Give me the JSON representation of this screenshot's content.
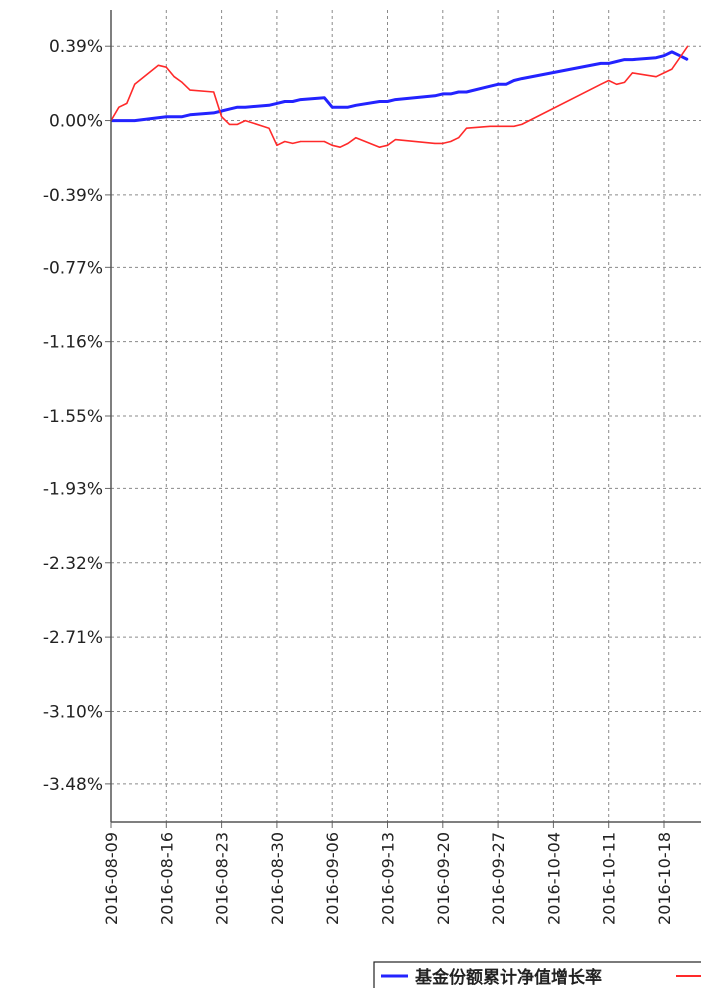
{
  "chart_data": {
    "type": "line",
    "title": "",
    "xlabel": "",
    "ylabel": "",
    "y_ticks": [
      "0.39%",
      "0.00%",
      "-0.39%",
      "-0.77%",
      "-1.16%",
      "-1.55%",
      "-1.93%",
      "-2.32%",
      "-2.71%",
      "-3.10%",
      "-3.48%"
    ],
    "x_ticks": [
      "2016-08-09",
      "2016-08-16",
      "2016-08-23",
      "2016-08-30",
      "2016-09-06",
      "2016-09-13",
      "2016-09-20",
      "2016-09-27",
      "2016-10-04",
      "2016-10-11",
      "2016-10-18"
    ],
    "ylim": [
      -3.68,
      0.58
    ],
    "xlim": [
      "2016-08-09",
      "2016-10-23"
    ],
    "grid": true,
    "legend_position": "bottom",
    "series": [
      {
        "name": "基金份额累计净值增长率",
        "color": "#2323ff",
        "points": [
          [
            "2016-08-09",
            0.0
          ],
          [
            "2016-08-12",
            0.0
          ],
          [
            "2016-08-16",
            0.02
          ],
          [
            "2016-08-18",
            0.02
          ],
          [
            "2016-08-19",
            0.03
          ],
          [
            "2016-08-22",
            0.04
          ],
          [
            "2016-08-23",
            0.05
          ],
          [
            "2016-08-24",
            0.06
          ],
          [
            "2016-08-25",
            0.07
          ],
          [
            "2016-08-26",
            0.07
          ],
          [
            "2016-08-29",
            0.08
          ],
          [
            "2016-08-30",
            0.09
          ],
          [
            "2016-08-31",
            0.1
          ],
          [
            "2016-09-01",
            0.1
          ],
          [
            "2016-09-02",
            0.11
          ],
          [
            "2016-09-05",
            0.12
          ],
          [
            "2016-09-06",
            0.07
          ],
          [
            "2016-09-07",
            0.07
          ],
          [
            "2016-09-08",
            0.07
          ],
          [
            "2016-09-09",
            0.08
          ],
          [
            "2016-09-12",
            0.1
          ],
          [
            "2016-09-13",
            0.1
          ],
          [
            "2016-09-14",
            0.11
          ],
          [
            "2016-09-19",
            0.13
          ],
          [
            "2016-09-20",
            0.14
          ],
          [
            "2016-09-21",
            0.14
          ],
          [
            "2016-09-22",
            0.15
          ],
          [
            "2016-09-23",
            0.15
          ],
          [
            "2016-09-26",
            0.18
          ],
          [
            "2016-09-27",
            0.19
          ],
          [
            "2016-09-28",
            0.19
          ],
          [
            "2016-09-29",
            0.21
          ],
          [
            "2016-09-30",
            0.22
          ],
          [
            "2016-10-10",
            0.3
          ],
          [
            "2016-10-11",
            0.3
          ],
          [
            "2016-10-12",
            0.31
          ],
          [
            "2016-10-13",
            0.32
          ],
          [
            "2016-10-14",
            0.32
          ],
          [
            "2016-10-17",
            0.33
          ],
          [
            "2016-10-18",
            0.34
          ],
          [
            "2016-10-19",
            0.36
          ],
          [
            "2016-10-20",
            0.34
          ],
          [
            "2016-10-21",
            0.32
          ]
        ]
      },
      {
        "name": "",
        "color": "#ff2a2a",
        "points": [
          [
            "2016-08-09",
            0.0
          ],
          [
            "2016-08-10",
            0.07
          ],
          [
            "2016-08-11",
            0.09
          ],
          [
            "2016-08-12",
            0.19
          ],
          [
            "2016-08-15",
            0.29
          ],
          [
            "2016-08-16",
            0.28
          ],
          [
            "2016-08-17",
            0.23
          ],
          [
            "2016-08-18",
            0.2
          ],
          [
            "2016-08-19",
            0.16
          ],
          [
            "2016-08-22",
            0.15
          ],
          [
            "2016-08-23",
            0.02
          ],
          [
            "2016-08-24",
            -0.02
          ],
          [
            "2016-08-25",
            -0.02
          ],
          [
            "2016-08-26",
            0.0
          ],
          [
            "2016-08-29",
            -0.04
          ],
          [
            "2016-08-30",
            -0.13
          ],
          [
            "2016-08-31",
            -0.11
          ],
          [
            "2016-09-01",
            -0.12
          ],
          [
            "2016-09-02",
            -0.11
          ],
          [
            "2016-09-05",
            -0.11
          ],
          [
            "2016-09-06",
            -0.13
          ],
          [
            "2016-09-07",
            -0.14
          ],
          [
            "2016-09-08",
            -0.12
          ],
          [
            "2016-09-09",
            -0.09
          ],
          [
            "2016-09-12",
            -0.14
          ],
          [
            "2016-09-13",
            -0.13
          ],
          [
            "2016-09-14",
            -0.1
          ],
          [
            "2016-09-19",
            -0.12
          ],
          [
            "2016-09-20",
            -0.12
          ],
          [
            "2016-09-21",
            -0.11
          ],
          [
            "2016-09-22",
            -0.09
          ],
          [
            "2016-09-23",
            -0.04
          ],
          [
            "2016-09-26",
            -0.03
          ],
          [
            "2016-09-27",
            -0.03
          ],
          [
            "2016-09-28",
            -0.03
          ],
          [
            "2016-09-29",
            -0.03
          ],
          [
            "2016-09-30",
            -0.02
          ],
          [
            "2016-10-10",
            0.19
          ],
          [
            "2016-10-11",
            0.21
          ],
          [
            "2016-10-12",
            0.19
          ],
          [
            "2016-10-13",
            0.2
          ],
          [
            "2016-10-14",
            0.25
          ],
          [
            "2016-10-17",
            0.23
          ],
          [
            "2016-10-18",
            0.25
          ],
          [
            "2016-10-19",
            0.27
          ],
          [
            "2016-10-20",
            0.33
          ],
          [
            "2016-10-21",
            0.39
          ]
        ]
      }
    ]
  }
}
